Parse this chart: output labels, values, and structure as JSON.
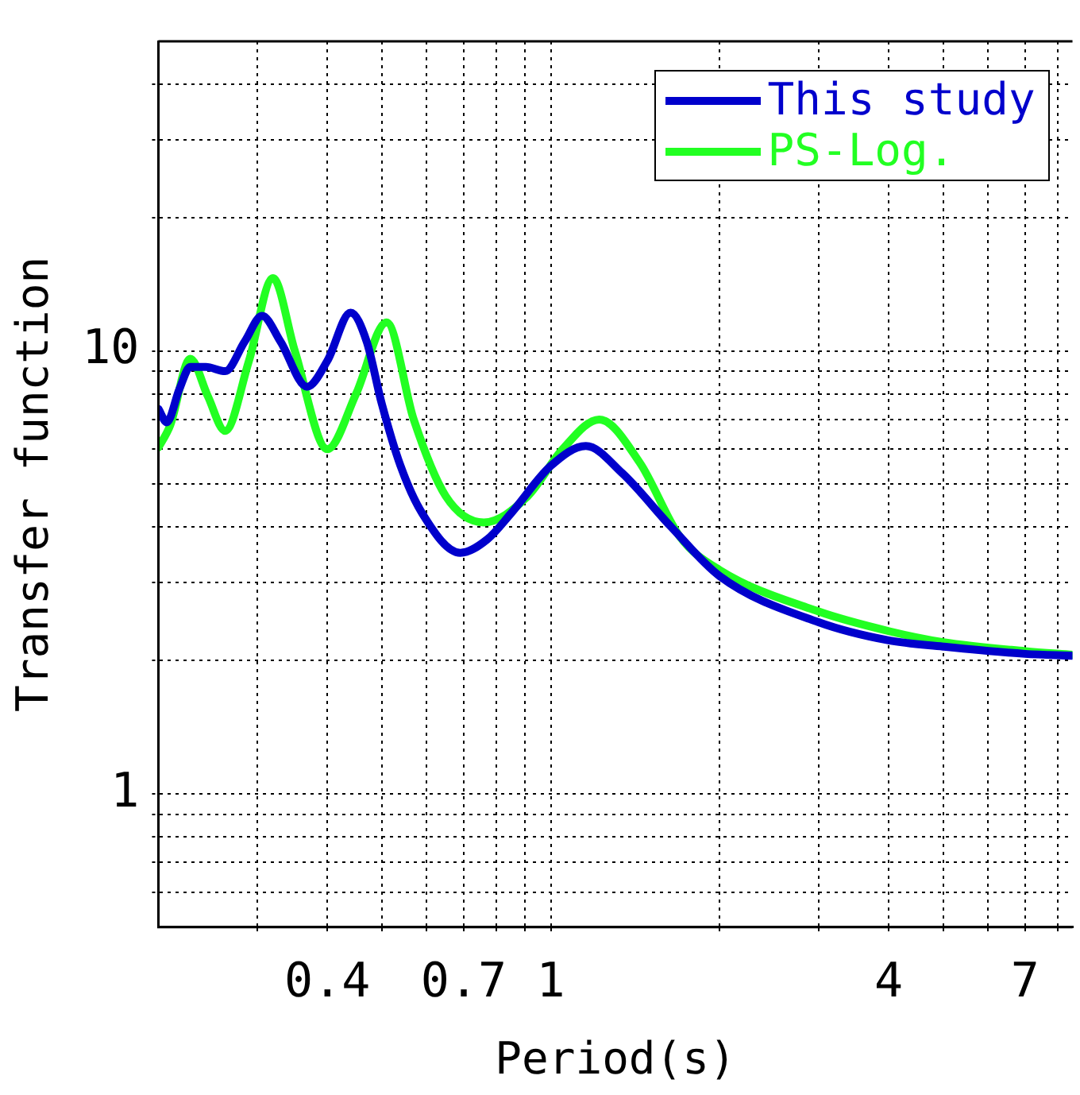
{
  "chart_data": {
    "type": "line",
    "xlabel": "Period(s)",
    "ylabel": "Transfer function",
    "log": "xy",
    "grid": true,
    "legend": "top right",
    "line_style": "solid",
    "marker": "none",
    "xlim": [
      0.2,
      8.5
    ],
    "ylim": [
      0.5,
      50
    ],
    "xticks": [
      {
        "value": 0.3,
        "label": null
      },
      0.4,
      {
        "value": 0.5,
        "label": null
      },
      {
        "value": 0.6,
        "label": null
      },
      0.7,
      {
        "value": 0.8,
        "label": null
      },
      {
        "value": 0.9,
        "label": null
      },
      1,
      {
        "value": 2,
        "label": null
      },
      {
        "value": 3,
        "label": null
      },
      4,
      {
        "value": 5,
        "label": null
      },
      {
        "value": 6,
        "label": null
      },
      7,
      {
        "value": 8,
        "label": null
      }
    ],
    "yticks": [
      {
        "value": 0.6,
        "label": null
      },
      {
        "value": 0.7,
        "label": null
      },
      {
        "value": 0.8,
        "label": null
      },
      {
        "value": 0.9,
        "label": null
      },
      1,
      {
        "value": 2,
        "label": null
      },
      {
        "value": 3,
        "label": null
      },
      {
        "value": 4,
        "label": null
      },
      {
        "value": 5,
        "label": null
      },
      {
        "value": 6,
        "label": null
      },
      {
        "value": 7,
        "label": null
      },
      {
        "value": 8,
        "label": null
      },
      {
        "value": 9,
        "label": null
      },
      10,
      {
        "value": 20,
        "label": null
      },
      {
        "value": 30,
        "label": null
      },
      {
        "value": 40,
        "label": null
      }
    ],
    "series": [
      {
        "name": "This study",
        "color": "#0000cc",
        "x": [
          0.2,
          0.207,
          0.218,
          0.228,
          0.243,
          0.263,
          0.285,
          0.306,
          0.33,
          0.368,
          0.4,
          0.44,
          0.47,
          0.5,
          0.54,
          0.59,
          0.69,
          0.77,
          0.85,
          1.0,
          1.155,
          1.34,
          1.64,
          2.0,
          3.0,
          4.0,
          5.0,
          7.0,
          8.5
        ],
        "values": [
          7.4,
          6.9,
          8.2,
          9.2,
          9.2,
          9.0,
          10.5,
          12.0,
          10.5,
          8.3,
          9.5,
          12.2,
          10.5,
          7.6,
          5.5,
          4.3,
          3.5,
          3.75,
          4.3,
          5.5,
          6.1,
          5.3,
          4.0,
          3.1,
          2.44,
          2.22,
          2.15,
          2.07,
          2.05
        ]
      },
      {
        "name": "PS-Log.",
        "color": "#22ff22",
        "x": [
          0.2,
          0.21,
          0.228,
          0.245,
          0.263,
          0.29,
          0.32,
          0.35,
          0.4,
          0.45,
          0.51,
          0.57,
          0.65,
          0.76,
          0.91,
          1.05,
          1.22,
          1.44,
          1.7,
          2.0,
          3.0,
          4.0,
          5.0,
          7.0,
          8.5
        ],
        "values": [
          6.05,
          6.8,
          9.6,
          7.9,
          6.6,
          9.5,
          14.6,
          10.0,
          6.0,
          8.0,
          11.6,
          7.0,
          4.7,
          4.1,
          4.7,
          6.0,
          7.0,
          5.6,
          3.8,
          3.2,
          2.58,
          2.33,
          2.2,
          2.1,
          2.06
        ]
      }
    ]
  }
}
